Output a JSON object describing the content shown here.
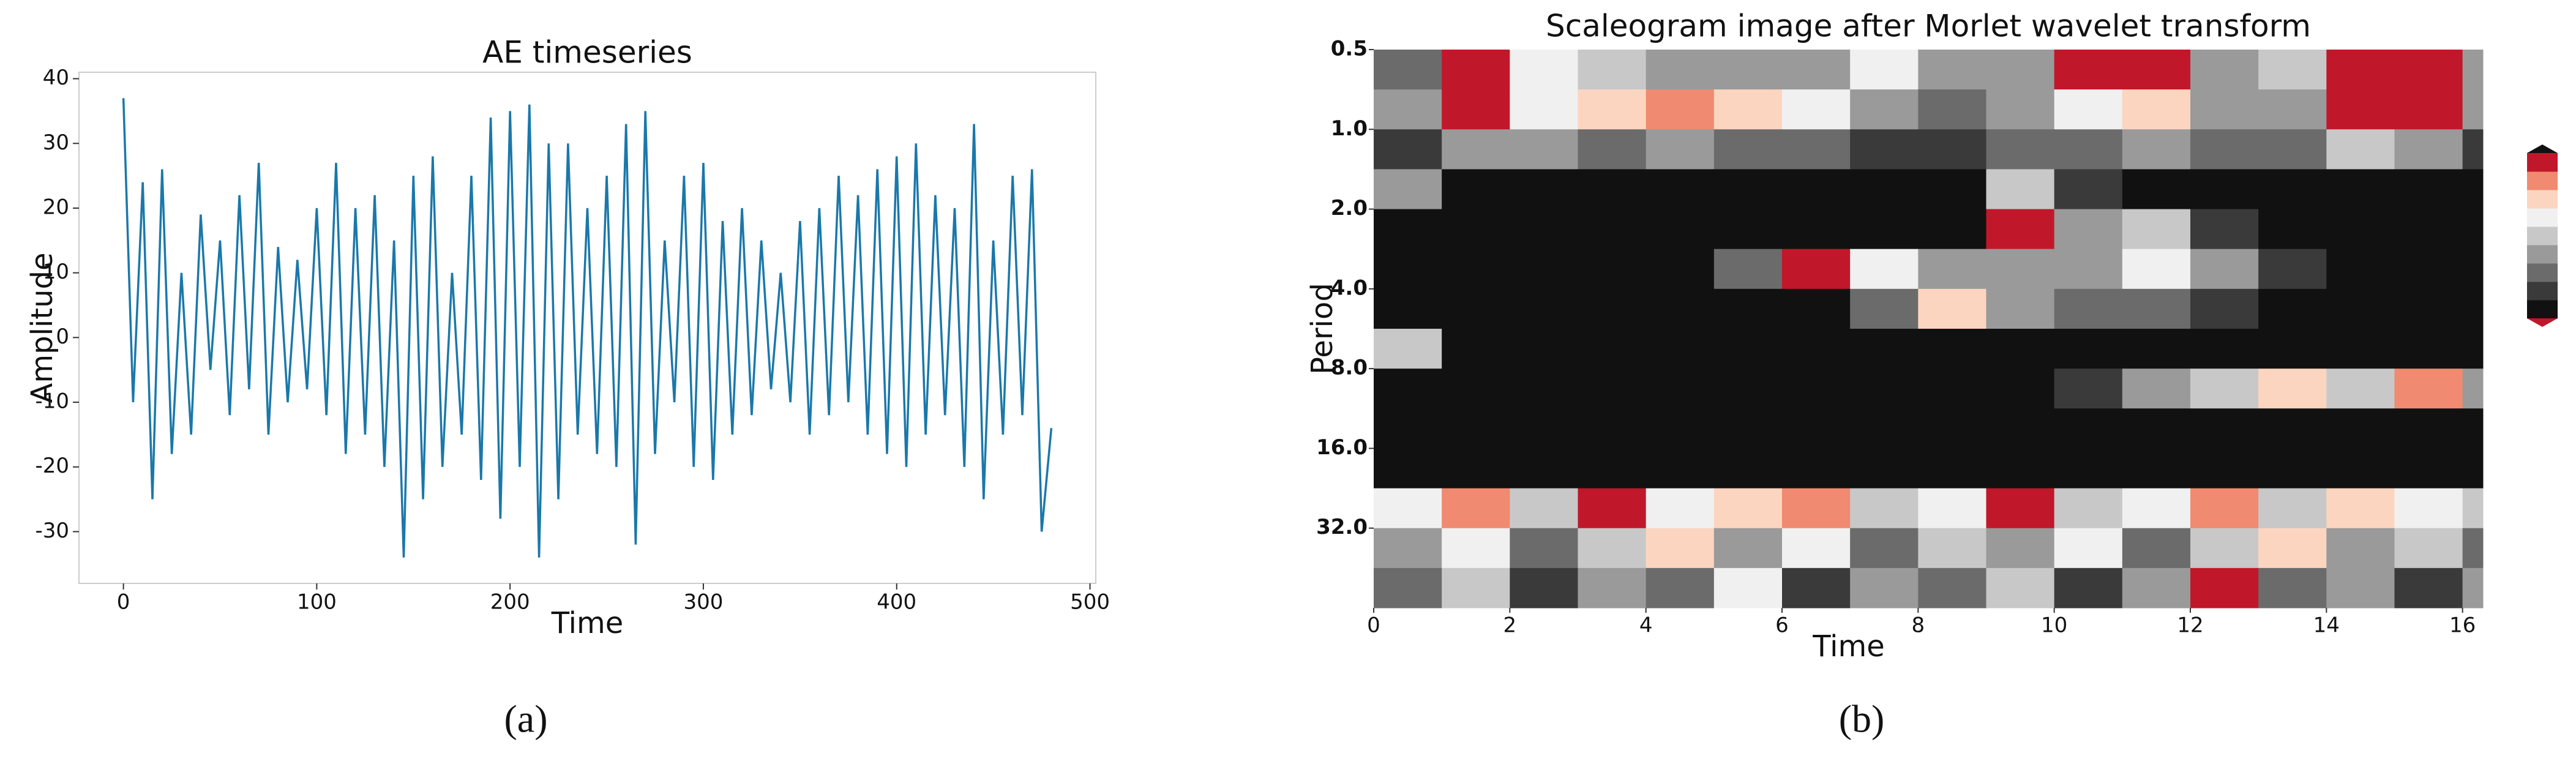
{
  "chart_data": [
    {
      "type": "line",
      "title": "AE timeseries",
      "xlabel": "Time",
      "ylabel": "Amplitude",
      "caption": "(a)",
      "color": "#1a78aa",
      "x": [
        0,
        5,
        10,
        15,
        20,
        25,
        30,
        35,
        40,
        45,
        50,
        55,
        60,
        65,
        70,
        75,
        80,
        85,
        90,
        95,
        100,
        105,
        110,
        115,
        120,
        125,
        130,
        135,
        140,
        145,
        150,
        155,
        160,
        165,
        170,
        175,
        180,
        185,
        190,
        195,
        200,
        205,
        210,
        215,
        220,
        225,
        230,
        235,
        240,
        245,
        250,
        255,
        260,
        265,
        270,
        275,
        280,
        285,
        290,
        295,
        300,
        305,
        310,
        315,
        320,
        325,
        330,
        335,
        340,
        345,
        350,
        355,
        360,
        365,
        370,
        375,
        380,
        385,
        390,
        395,
        400,
        405,
        410,
        415,
        420,
        425,
        430,
        435,
        440,
        445,
        450,
        455,
        460,
        465,
        470,
        475,
        480
      ],
      "values": [
        37,
        -10,
        24,
        -25,
        26,
        -18,
        10,
        -15,
        19,
        -5,
        15,
        -12,
        22,
        -8,
        27,
        -15,
        14,
        -10,
        12,
        -8,
        20,
        -12,
        27,
        -18,
        20,
        -15,
        22,
        -20,
        15,
        -34,
        25,
        -25,
        28,
        -20,
        10,
        -15,
        25,
        -22,
        34,
        -28,
        35,
        -20,
        36,
        -34,
        30,
        -25,
        30,
        -15,
        20,
        -18,
        25,
        -20,
        33,
        -32,
        35,
        -18,
        15,
        -10,
        25,
        -20,
        27,
        -22,
        18,
        -15,
        20,
        -12,
        15,
        -8,
        10,
        -10,
        18,
        -15,
        20,
        -12,
        25,
        -10,
        22,
        -15,
        26,
        -18,
        28,
        -20,
        30,
        -15,
        22,
        -12,
        20,
        -20,
        33,
        -25,
        15,
        -15,
        25,
        -12,
        26,
        -30,
        -14
      ],
      "xlim": [
        -23,
        503
      ],
      "xticks": [
        0,
        100,
        200,
        300,
        400,
        500
      ],
      "ylim": [
        -38,
        41
      ],
      "yticks": [
        -30,
        -20,
        -10,
        0,
        10,
        20,
        30,
        40
      ]
    },
    {
      "type": "heatmap",
      "title": "Scaleogram image after Morlet wavelet transform",
      "xlabel": "Time",
      "ylabel": "Period",
      "caption": "(b)",
      "xlim": [
        0,
        16.3
      ],
      "xticks": [
        0,
        2,
        4,
        6,
        8,
        10,
        12,
        14,
        16
      ],
      "ylim": [
        0.5,
        64
      ],
      "yscale": "log",
      "yinverted": true,
      "yticks": [
        {
          "value": 0.5,
          "label": "0.5"
        },
        {
          "value": 1,
          "label": "1.0"
        },
        {
          "value": 2,
          "label": "2.0"
        },
        {
          "value": 4,
          "label": "4.0"
        },
        {
          "value": 8,
          "label": "8.0"
        },
        {
          "value": 16,
          "label": "16.0"
        },
        {
          "value": 32,
          "label": "32.0"
        }
      ],
      "xbins": [
        0,
        1,
        2,
        3,
        4,
        5,
        6,
        7,
        8,
        9,
        10,
        11,
        12,
        13,
        14,
        15,
        16,
        16.3
      ],
      "ybins": [
        0.5,
        0.707,
        1,
        1.414,
        2,
        2.828,
        4,
        5.657,
        8,
        11.31,
        16,
        22.63,
        32,
        45.25,
        64
      ],
      "colors": [
        "#111111",
        "#3a3a3a",
        "#6b6b6b",
        "#9a9a9a",
        "#c8c8c8",
        "#f0f0f0",
        "#fcd5c0",
        "#f08a70",
        "#c0182a"
      ],
      "z": [
        [
          2,
          8,
          5,
          4,
          3,
          3,
          3,
          5,
          3,
          3,
          8,
          8,
          3,
          4,
          8,
          8,
          3
        ],
        [
          3,
          8,
          5,
          6,
          7,
          6,
          5,
          3,
          2,
          3,
          5,
          6,
          3,
          3,
          8,
          8,
          3
        ],
        [
          1,
          3,
          3,
          2,
          3,
          2,
          2,
          1,
          1,
          2,
          2,
          3,
          2,
          2,
          4,
          3,
          1
        ],
        [
          3,
          0,
          0,
          0,
          0,
          0,
          0,
          0,
          0,
          4,
          1,
          0,
          0,
          0,
          0,
          0,
          0
        ],
        [
          0,
          0,
          0,
          0,
          0,
          0,
          0,
          0,
          0,
          8,
          3,
          4,
          1,
          0,
          0,
          0,
          0
        ],
        [
          0,
          0,
          0,
          0,
          0,
          2,
          8,
          5,
          3,
          3,
          3,
          5,
          3,
          1,
          0,
          0,
          0
        ],
        [
          0,
          0,
          0,
          0,
          0,
          0,
          0,
          2,
          6,
          3,
          2,
          2,
          1,
          0,
          0,
          0,
          0
        ],
        [
          4,
          0,
          0,
          0,
          0,
          0,
          0,
          0,
          0,
          0,
          0,
          0,
          0,
          0,
          0,
          0,
          0
        ],
        [
          0,
          0,
          0,
          0,
          0,
          0,
          0,
          0,
          0,
          0,
          1,
          3,
          4,
          6,
          4,
          7,
          3
        ],
        [
          0,
          0,
          0,
          0,
          0,
          0,
          0,
          0,
          0,
          0,
          0,
          0,
          0,
          0,
          0,
          0,
          0
        ],
        [
          0,
          0,
          0,
          0,
          0,
          0,
          0,
          0,
          0,
          0,
          0,
          0,
          0,
          0,
          0,
          0,
          0
        ],
        [
          5,
          7,
          4,
          8,
          5,
          6,
          7,
          4,
          5,
          8,
          4,
          5,
          7,
          4,
          6,
          5,
          4
        ],
        [
          3,
          5,
          2,
          4,
          6,
          3,
          5,
          2,
          4,
          3,
          5,
          2,
          4,
          6,
          3,
          4,
          2
        ],
        [
          2,
          4,
          1,
          3,
          2,
          5,
          1,
          3,
          2,
          4,
          1,
          3,
          8,
          2,
          3,
          1,
          3
        ]
      ]
    }
  ]
}
